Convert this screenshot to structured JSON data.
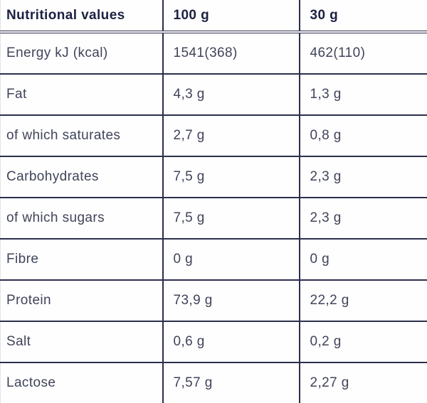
{
  "chart_data": {
    "type": "table",
    "title": "Nutritional values",
    "columns": [
      "Nutritional values",
      "100 g",
      "30 g"
    ],
    "rows": [
      [
        "Energy kJ (kcal)",
        "1541(368)",
        "462(110)"
      ],
      [
        "Fat",
        "4,3 g",
        "1,3 g"
      ],
      [
        "of which saturates",
        "2,7 g",
        "0,8 g"
      ],
      [
        "Carbohydrates",
        "7,5 g",
        "2,3 g"
      ],
      [
        "of which sugars",
        "7,5 g",
        "2,3 g"
      ],
      [
        "Fibre",
        "0 g",
        "0 g"
      ],
      [
        "Protein",
        "73,9 g",
        "22,2 g"
      ],
      [
        "Salt",
        "0,6 g",
        "0,2 g"
      ],
      [
        "Lactose",
        "7,57 g",
        "2,27 g"
      ]
    ],
    "layout": {
      "grid": "on",
      "outer_top_border": "none",
      "outer_bottom_border": "clipped",
      "header_separator": "double-line"
    }
  },
  "colors": {
    "border": "#2b2f4c",
    "header_text": "#1c2143",
    "body_text": "#404459",
    "background": "#fefefe"
  }
}
